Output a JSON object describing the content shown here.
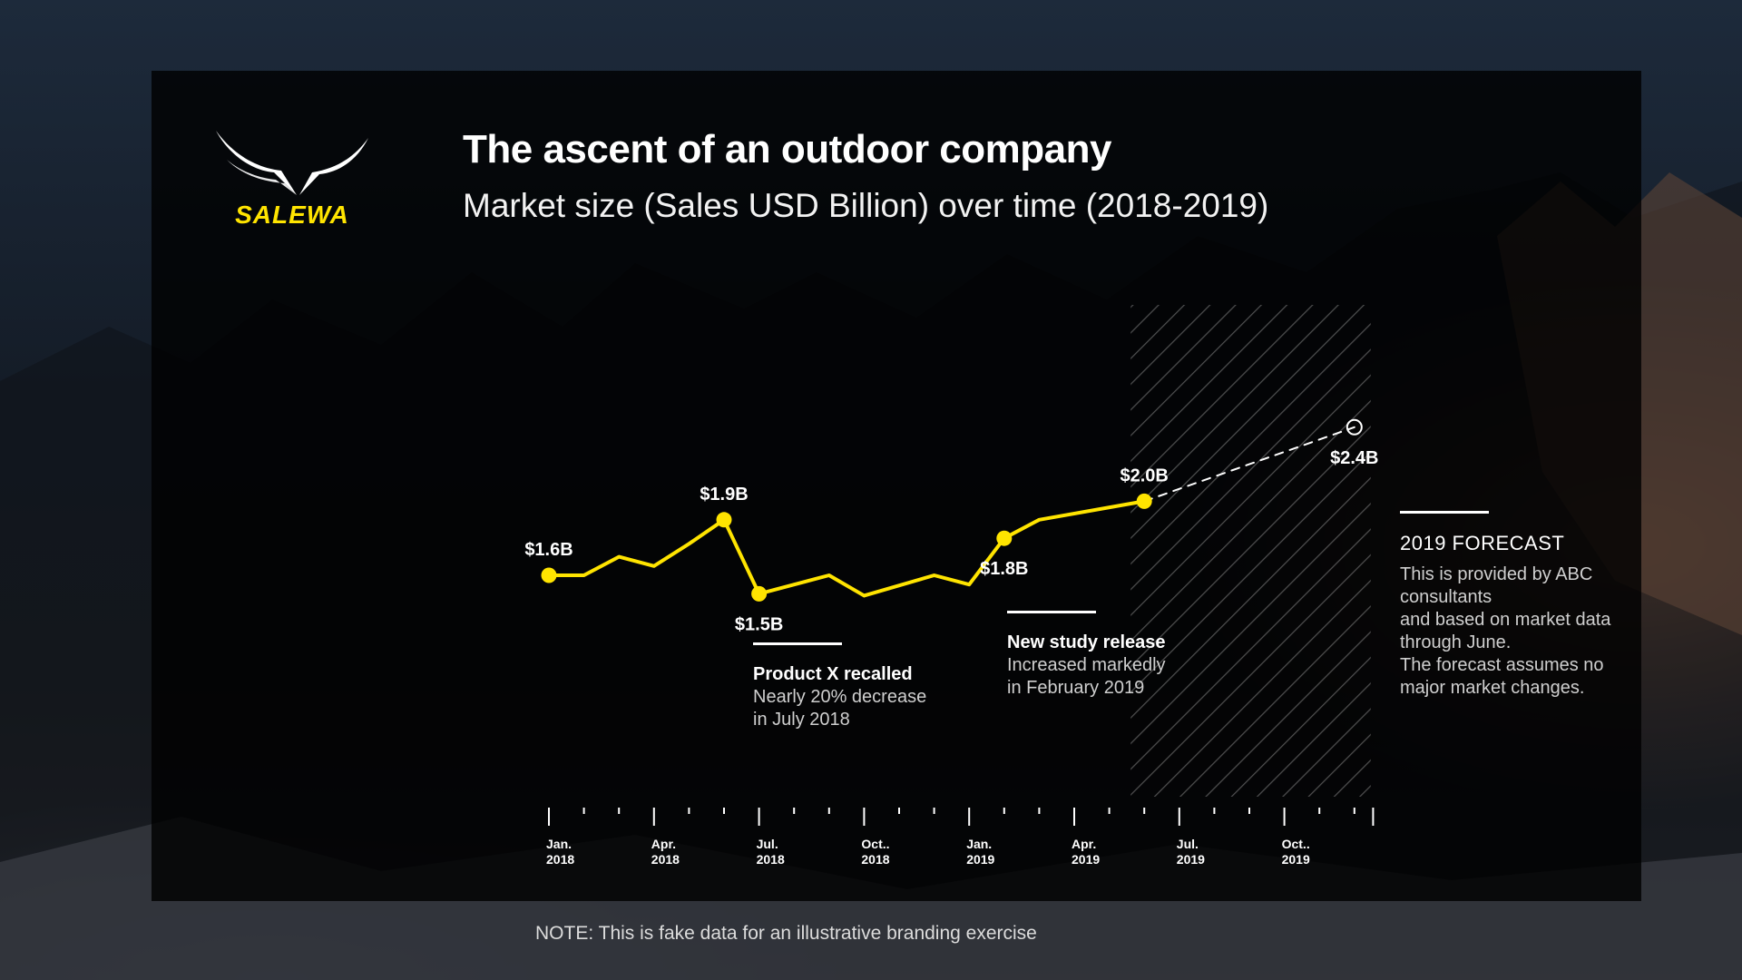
{
  "brand": {
    "name": "SALEWA",
    "accent_color": "#ffe400"
  },
  "header": {
    "title": "The ascent of an outdoor company",
    "subtitle": "Market size (Sales USD Billion) over time (2018-2019)"
  },
  "chart_data": {
    "type": "line",
    "title": "The ascent of an outdoor company",
    "subtitle": "Market size (Sales USD Billion) over time (2018-2019)",
    "xlabel": "",
    "ylabel": "",
    "x_range": [
      "2018-01",
      "2019-12"
    ],
    "x_ticks": [
      {
        "label": [
          "Jan.",
          "2018"
        ],
        "date": "2018-01"
      },
      {
        "label": [
          "Apr.",
          "2018"
        ],
        "date": "2018-04"
      },
      {
        "label": [
          "Jul.",
          "2018"
        ],
        "date": "2018-07"
      },
      {
        "label": [
          "Oct..",
          "2018"
        ],
        "date": "2018-10"
      },
      {
        "label": [
          "Jan.",
          "2019"
        ],
        "date": "2019-01"
      },
      {
        "label": [
          "Apr.",
          "2019"
        ],
        "date": "2019-04"
      },
      {
        "label": [
          "Jul.",
          "2019"
        ],
        "date": "2019-07"
      },
      {
        "label": [
          "Oct..",
          "2019"
        ],
        "date": "2019-10"
      }
    ],
    "ylim": [
      1.2,
      2.6
    ],
    "grid": false,
    "series": [
      {
        "color": "#ffe400",
        "style": "solid",
        "points": [
          {
            "x": "2018-01",
            "y": 1.6
          },
          {
            "x": "2018-02",
            "y": 1.6
          },
          {
            "x": "2018-03",
            "y": 1.7
          },
          {
            "x": "2018-04",
            "y": 1.65
          },
          {
            "x": "2018-05",
            "y": 1.77
          },
          {
            "x": "2018-06",
            "y": 1.9
          },
          {
            "x": "2018-07",
            "y": 1.5
          },
          {
            "x": "2018-09",
            "y": 1.6
          },
          {
            "x": "2018-10",
            "y": 1.49
          },
          {
            "x": "2018-12",
            "y": 1.6
          },
          {
            "x": "2019-01",
            "y": 1.55
          },
          {
            "x": "2019-02",
            "y": 1.8
          },
          {
            "x": "2019-03",
            "y": 1.9
          },
          {
            "x": "2019-06",
            "y": 2.0
          }
        ]
      },
      {
        "color": "#ffffff",
        "style": "dashed",
        "points": [
          {
            "x": "2019-06",
            "y": 2.0
          },
          {
            "x": "2019-12",
            "y": 2.4
          }
        ]
      }
    ],
    "point_labels": [
      {
        "x": "2018-01",
        "y": 1.6,
        "text": "$1.6B",
        "pos": "above"
      },
      {
        "x": "2018-06",
        "y": 1.9,
        "text": "$1.9B",
        "pos": "above"
      },
      {
        "x": "2018-07",
        "y": 1.5,
        "text": "$1.5B",
        "pos": "below"
      },
      {
        "x": "2019-02",
        "y": 1.8,
        "text": "$1.8B",
        "pos": "below"
      },
      {
        "x": "2019-06",
        "y": 2.0,
        "text": "$2.0B",
        "pos": "above"
      },
      {
        "x": "2019-12",
        "y": 2.4,
        "text": "$2.4B",
        "pos": "below",
        "hollow": true
      }
    ],
    "forecast_region": {
      "from": "2019-06",
      "to": "2019-12",
      "pattern": "diagonal-hatch"
    }
  },
  "annotations": {
    "recall": {
      "heading": "Product X recalled",
      "line1": "Nearly 20% decrease",
      "line2": "in July 2018"
    },
    "study": {
      "heading": "New study release",
      "line1": "Increased markedly",
      "line2": "in February 2019"
    },
    "forecast": {
      "heading": "2019 FORECAST",
      "line1": "This is provided by ABC",
      "line2": "consultants",
      "line3": "and based on market data",
      "line4": "through June.",
      "line5": "The forecast assumes no",
      "line6": "major market changes."
    }
  },
  "footer": {
    "note": "NOTE: This is fake data for an illustrative branding exercise"
  }
}
